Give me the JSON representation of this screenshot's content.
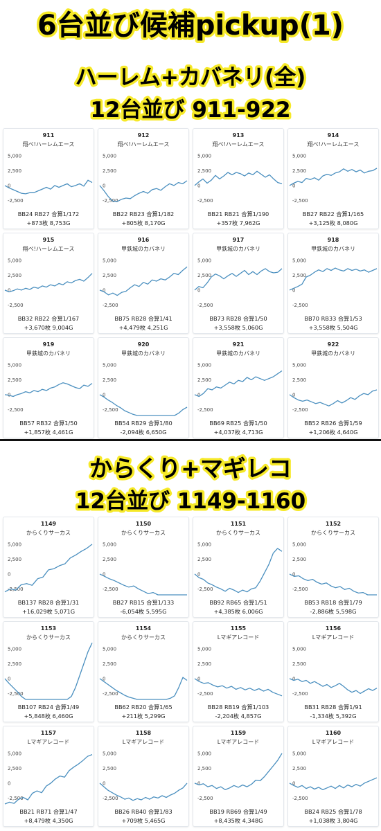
{
  "header": {
    "title": "6台並び候補pickup(1)",
    "section1_line1": "ハーレム+カバネリ(全)",
    "section1_line2": "12台並び 911-922",
    "section2_line1": "からくり+マギレコ",
    "section2_line2": "12台並び 1149-1160"
  },
  "colors": {
    "line": "#4a8fbf",
    "highlight": "#f6e928",
    "text": "#000000"
  },
  "chart_data": [
    {
      "type": "line",
      "grid": false,
      "ylim": [
        -3500,
        6500
      ],
      "yticks": [
        "5,000",
        "2,500",
        "0",
        "-2,500"
      ],
      "units": [
        {
          "num": "911",
          "model": "翔べ!ハーレムエース",
          "stats": "BB24 RB27 合算1/172",
          "result": "+873枚 8,753G",
          "values": [
            0,
            -400,
            -700,
            -1000,
            -1300,
            -1400,
            -1200,
            -1200,
            -900,
            -600,
            -300,
            -600,
            0,
            -300,
            0,
            300,
            -200,
            0,
            300,
            -100,
            900,
            500
          ]
        },
        {
          "num": "912",
          "model": "翔べ!ハーレムエース",
          "stats": "BB22 RB23 合算1/182",
          "result": "+805枚 8,170G",
          "values": [
            0,
            -900,
            -1900,
            -2600,
            -2700,
            -2300,
            -2100,
            -2200,
            -1700,
            -1300,
            -1000,
            -1300,
            -700,
            -500,
            -800,
            -200,
            300,
            0,
            500,
            300,
            800
          ]
        },
        {
          "num": "913",
          "model": "翔べ!ハーレムエース",
          "stats": "BB21 RB21 合算1/190",
          "result": "+357枚 7,962G",
          "values": [
            0,
            600,
            1100,
            400,
            900,
            1700,
            1100,
            1600,
            2200,
            1800,
            2200,
            2000,
            1600,
            2100,
            1800,
            2400,
            1900,
            1400,
            1800,
            1100,
            500,
            300
          ]
        },
        {
          "num": "914",
          "model": "翔べ!ハーレムエース",
          "stats": "BB27 RB22 合算1/165",
          "result": "+3,125枚 8,080G",
          "values": [
            0,
            400,
            700,
            500,
            1200,
            1000,
            1300,
            900,
            1600,
            1900,
            1700,
            2100,
            2300,
            2800,
            2400,
            2700,
            2300,
            2600,
            2100,
            2400,
            2500,
            2900
          ]
        },
        {
          "num": "915",
          "model": "翔べ!ハーレムエース",
          "stats": "BB32 RB22 合算1/167",
          "result": "+3,670枚 9,004G",
          "values": [
            0,
            -300,
            -100,
            200,
            0,
            300,
            100,
            500,
            300,
            700,
            500,
            900,
            700,
            1100,
            900,
            1400,
            1200,
            1600,
            1800,
            1500,
            2100,
            2800
          ]
        },
        {
          "num": "916",
          "model": "甲鉄城のカバネリ",
          "stats": "BB75 RB28 合算1/41",
          "result": "+4,479枚 4,251G",
          "values": [
            0,
            -300,
            -800,
            -500,
            -900,
            -400,
            -200,
            400,
            900,
            600,
            1300,
            1000,
            1700,
            1500,
            1900,
            1700,
            2200,
            2800,
            2600,
            3300,
            3900
          ]
        },
        {
          "num": "917",
          "model": "甲鉄城のカバネリ",
          "stats": "BB73 RB28 合算1/50",
          "result": "+3,558枚 5,060G",
          "values": [
            0,
            600,
            400,
            1200,
            2200,
            2700,
            2400,
            1900,
            2400,
            2800,
            2300,
            2800,
            3300,
            2600,
            3100,
            2600,
            3200,
            3600,
            3100,
            2900,
            3000,
            3600
          ]
        },
        {
          "num": "918",
          "model": "甲鉄城のカバネリ",
          "stats": "BB70 RB33 合算1/53",
          "result": "+3,558枚 5,504G",
          "values": [
            0,
            300,
            600,
            1000,
            2200,
            2500,
            3000,
            3400,
            3100,
            3600,
            3300,
            3700,
            3400,
            3200,
            3600,
            3300,
            3500,
            3200,
            3400,
            3000,
            3300,
            3600
          ]
        },
        {
          "num": "919",
          "model": "甲鉄城のカバネリ",
          "stats": "BB57 RB32 合算1/50",
          "result": "+1,857枚 4,461G",
          "values": [
            0,
            -100,
            -300,
            0,
            200,
            500,
            300,
            700,
            500,
            900,
            700,
            1100,
            1300,
            1700,
            2000,
            1800,
            1500,
            1200,
            1000,
            1600,
            1400,
            1900
          ]
        },
        {
          "num": "920",
          "model": "甲鉄城のカバネリ",
          "stats": "BB54 RB29 合算1/80",
          "result": "-2,094枚 6,650G",
          "values": [
            0,
            -400,
            -900,
            -1300,
            -1800,
            -2200,
            -2700,
            -3000,
            -3300,
            -3500,
            -3800,
            -4100,
            -4300,
            -4600,
            -4400,
            -4300,
            -4000,
            -3800,
            -3500,
            -3100,
            -2500,
            -2100
          ]
        },
        {
          "num": "921",
          "model": "甲鉄城のカバネリ",
          "stats": "BB69 RB25 合算1/50",
          "result": "+4,037枚 4,713G",
          "values": [
            0,
            -300,
            200,
            1000,
            800,
            1300,
            1100,
            1600,
            2100,
            1800,
            2400,
            2200,
            2900,
            2500,
            3000,
            2700,
            2400,
            2700,
            3000,
            3500,
            4000
          ]
        },
        {
          "num": "922",
          "model": "甲鉄城のカバネリ",
          "stats": "BB52 RB26 合算1/59",
          "result": "+1,206枚 4,640G",
          "values": [
            0,
            -500,
            -900,
            -1100,
            -900,
            -1200,
            -1500,
            -1300,
            -1600,
            -1900,
            -1500,
            -1000,
            -1400,
            -1000,
            -500,
            -800,
            -200,
            200,
            0,
            600,
            800
          ]
        },
        {
          "num": "1149",
          "model": "からくりサーカス",
          "stats": "BB137 RB28 合算1/31",
          "result": "+16,029枚 5,071G",
          "values": [
            -3000,
            -2500,
            -2700,
            -1800,
            -1600,
            -1900,
            -800,
            -500,
            700,
            900,
            1400,
            1700,
            2700,
            3200,
            3800,
            4300,
            5000
          ]
        },
        {
          "num": "1150",
          "model": "からくりサーカス",
          "stats": "BB27 RB15 合算1/133",
          "result": "-6,054枚 5,595G",
          "values": [
            0,
            -400,
            -800,
            -1100,
            -1500,
            -1900,
            -2200,
            -2000,
            -2500,
            -2900,
            -3300,
            -3100,
            -3500,
            -3800,
            -4200,
            -4500,
            -4900,
            -5300,
            -5700
          ]
        },
        {
          "num": "1151",
          "model": "からくりサーカス",
          "stats": "BB92 RB65 合算1/51",
          "result": "+4,385枚 6,006G",
          "values": [
            0,
            -600,
            -900,
            -1500,
            -1800,
            -2200,
            -2500,
            -2900,
            -2400,
            -2700,
            -3100,
            -2700,
            -3000,
            -2500,
            -2300,
            -1200,
            200,
            1600,
            3500,
            4300,
            3800
          ]
        },
        {
          "num": "1152",
          "model": "からくりサーカス",
          "stats": "BB53 RB18 合算1/79",
          "result": "-2,886枚 5,598G",
          "values": [
            0,
            -400,
            -300,
            -800,
            -1100,
            -900,
            -1400,
            -1700,
            -1500,
            -2000,
            -2300,
            -2100,
            -2600,
            -2400,
            -2900,
            -3200,
            -3100,
            -3500,
            -3800,
            -4100
          ]
        },
        {
          "num": "1153",
          "model": "からくりサーカス",
          "stats": "BB107 RB24 合算1/49",
          "result": "+5,848枚 6,460G",
          "values": [
            0,
            -800,
            -1500,
            -2200,
            -3000,
            -3800,
            -4300,
            -4800,
            -5300,
            -5600,
            -5800,
            -5800,
            -5600,
            -5200,
            -4600,
            -3900,
            -3000,
            -1500,
            500,
            2500,
            4500,
            6000
          ]
        },
        {
          "num": "1154",
          "model": "からくりサーカス",
          "stats": "BB62 RB20 合算1/65",
          "result": "+211枚 5,299G",
          "values": [
            0,
            -500,
            -1000,
            -1500,
            -2000,
            -2400,
            -2800,
            -3100,
            -3300,
            -3500,
            -3600,
            -3700,
            -3800,
            -3800,
            -3700,
            -3600,
            -3500,
            -3300,
            -2900,
            -1500,
            200,
            -300
          ]
        },
        {
          "num": "1155",
          "model": "Lマギアレコード",
          "stats": "BB28 RB19 合算1/103",
          "result": "-2,204枚 4,857G",
          "values": [
            0,
            -500,
            -800,
            -700,
            -1100,
            -1400,
            -1200,
            -1600,
            -1300,
            -1800,
            -1500,
            -1900,
            -1600,
            -2000,
            -1700,
            -2100,
            -1800,
            -2300,
            -2600,
            -2900
          ]
        },
        {
          "num": "1156",
          "model": "Lマギアレコード",
          "stats": "BB31 RB28 合算1/91",
          "result": "-1,334枚 5,392G",
          "values": [
            0,
            -300,
            -100,
            -500,
            -300,
            -800,
            -500,
            -900,
            -1300,
            -1000,
            -1500,
            -1200,
            -800,
            -1300,
            -1900,
            -2300,
            -2000,
            -2500,
            -2100,
            -1700,
            -2000,
            -1600
          ]
        },
        {
          "num": "1157",
          "model": "Lマギアレコード",
          "stats": "BB21 RB71 合算1/47",
          "result": "+8,479枚 4,350G",
          "values": [
            -3500,
            -3200,
            -3400,
            -2700,
            -2400,
            -2800,
            -1700,
            -1300,
            -1600,
            -500,
            0,
            700,
            1200,
            1000,
            2100,
            2700,
            3200,
            3800,
            4500,
            4800
          ]
        },
        {
          "num": "1158",
          "model": "Lマギアレコード",
          "stats": "BB26 RB40 合算1/83",
          "result": "+709枚 5,465G",
          "values": [
            0,
            -600,
            -1200,
            -1600,
            -2000,
            -2300,
            -2700,
            -2500,
            -2900,
            -2600,
            -2800,
            -2400,
            -2700,
            -2300,
            -2500,
            -2100,
            -2400,
            -2000,
            -1700,
            -1200,
            -800,
            0
          ]
        },
        {
          "num": "1159",
          "model": "Lマギアレコード",
          "stats": "BB19 RB69 合算1/49",
          "result": "+8,435枚 4,348G",
          "values": [
            0,
            -300,
            -100,
            -600,
            -400,
            -900,
            -600,
            -1100,
            -800,
            -400,
            -700,
            -300,
            -600,
            -200,
            500,
            400,
            1100,
            2000,
            2900,
            3800,
            5000
          ]
        },
        {
          "num": "1160",
          "model": "Lマギアレコード",
          "stats": "BB24 RB25 合算1/78",
          "result": "+1,038枚 3,804G",
          "values": [
            0,
            -400,
            -700,
            -400,
            -900,
            -600,
            -1000,
            -700,
            -1100,
            -800,
            -500,
            -900,
            -400,
            -800,
            -300,
            -600,
            -200,
            -500,
            0,
            300,
            600,
            900
          ]
        }
      ]
    }
  ]
}
